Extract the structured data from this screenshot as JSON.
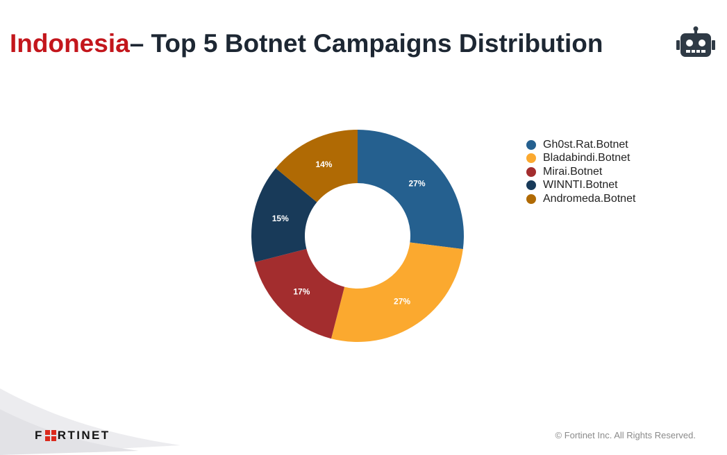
{
  "title": {
    "country": "Indonesia",
    "rest": "– Top 5 Botnet Campaigns Distribution"
  },
  "icons": {
    "robot": "robot-icon",
    "logo_mark": "fortinet-o-mark"
  },
  "colors": {
    "title_accent": "#c3161c",
    "title_text": "#1d2733"
  },
  "chart_data": {
    "type": "pie",
    "subtype": "donut",
    "title": "",
    "labels": [
      "Gh0st.Rat.Botnet",
      "Bladabindi.Botnet",
      "Mirai.Botnet",
      "WINNTI.Botnet",
      "Andromeda.Botnet"
    ],
    "values": [
      27,
      27,
      17,
      15,
      14
    ],
    "value_labels": [
      "27%",
      "27%",
      "17%",
      "15%",
      "14%"
    ],
    "colors": [
      "#25608f",
      "#fba92f",
      "#a32d2e",
      "#183a59",
      "#b06a04"
    ],
    "legend": "right",
    "start": "top, clockwise"
  },
  "footer": {
    "logo_text_first": "F",
    "logo_text_rest": "RTINET",
    "copyright": "© Fortinet Inc. All Rights Reserved."
  }
}
